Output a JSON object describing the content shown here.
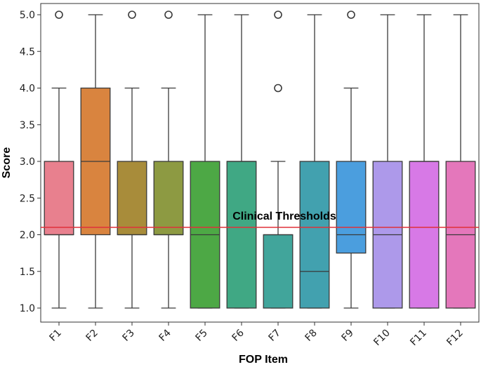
{
  "chart_data": {
    "type": "box",
    "xlabel": "FOP Item",
    "ylabel": "Score",
    "ylim": [
      0.9,
      5.1
    ],
    "yticks": [
      1.0,
      1.5,
      2.0,
      2.5,
      3.0,
      3.5,
      4.0,
      4.5,
      5.0
    ],
    "ytick_labels": [
      "1.0",
      "1.5",
      "2.0",
      "2.5",
      "3.0",
      "3.5",
      "4.0",
      "4.5",
      "5.0"
    ],
    "grid": false,
    "categories": [
      "F1",
      "F2",
      "F3",
      "F4",
      "F5",
      "F6",
      "F7",
      "F8",
      "F9",
      "F10",
      "F11",
      "F12"
    ],
    "boxes": [
      {
        "min": 1,
        "q1": 2,
        "median": 2,
        "q3": 3,
        "max": 4,
        "outliers": [
          5
        ],
        "color": "#e8808e"
      },
      {
        "min": 1,
        "q1": 2,
        "median": 3,
        "q3": 4,
        "max": 5,
        "outliers": [],
        "color": "#d9843f"
      },
      {
        "min": 1,
        "q1": 2,
        "median": 2,
        "q3": 3,
        "max": 4,
        "outliers": [
          5
        ],
        "color": "#a88c3a"
      },
      {
        "min": 1,
        "q1": 2,
        "median": 2,
        "q3": 3,
        "max": 4,
        "outliers": [
          5
        ],
        "color": "#8d9a42"
      },
      {
        "min": 1,
        "q1": 1,
        "median": 2,
        "q3": 3,
        "max": 5,
        "outliers": [],
        "color": "#4da845"
      },
      {
        "min": 1,
        "q1": 1,
        "median": 3,
        "q3": 3,
        "max": 5,
        "outliers": [],
        "color": "#40a884"
      },
      {
        "min": 1,
        "q1": 1,
        "median": 2,
        "q3": 2,
        "max": 3,
        "outliers": [
          4,
          5
        ],
        "color": "#41a59b"
      },
      {
        "min": 1,
        "q1": 1,
        "median": 1.5,
        "q3": 3,
        "max": 5,
        "outliers": [],
        "color": "#42a1af"
      },
      {
        "min": 1,
        "q1": 1.75,
        "median": 2,
        "q3": 3,
        "max": 4,
        "outliers": [
          5
        ],
        "color": "#4b9ede"
      },
      {
        "min": 1,
        "q1": 1,
        "median": 2,
        "q3": 3,
        "max": 5,
        "outliers": [],
        "color": "#ad99ea"
      },
      {
        "min": 1,
        "q1": 1,
        "median": 3,
        "q3": 3,
        "max": 5,
        "outliers": [],
        "color": "#d779e6"
      },
      {
        "min": 1,
        "q1": 1,
        "median": 2,
        "q3": 3,
        "max": 5,
        "outliers": [],
        "color": "#e477bb"
      }
    ],
    "reference_line": {
      "y": 2.1,
      "color": "#e0303a",
      "label": "Clinical Thresholds"
    }
  }
}
